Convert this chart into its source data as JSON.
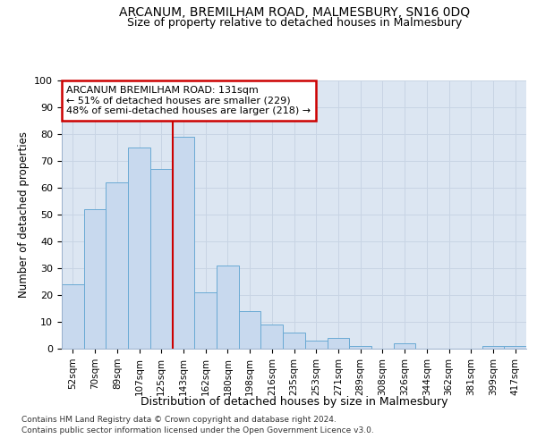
{
  "title1": "ARCANUM, BREMILHAM ROAD, MALMESBURY, SN16 0DQ",
  "title2": "Size of property relative to detached houses in Malmesbury",
  "xlabel": "Distribution of detached houses by size in Malmesbury",
  "ylabel": "Number of detached properties",
  "footnote1": "Contains HM Land Registry data © Crown copyright and database right 2024.",
  "footnote2": "Contains public sector information licensed under the Open Government Licence v3.0.",
  "bar_labels": [
    "52sqm",
    "70sqm",
    "89sqm",
    "107sqm",
    "125sqm",
    "143sqm",
    "162sqm",
    "180sqm",
    "198sqm",
    "216sqm",
    "235sqm",
    "253sqm",
    "271sqm",
    "289sqm",
    "308sqm",
    "326sqm",
    "344sqm",
    "362sqm",
    "381sqm",
    "399sqm",
    "417sqm"
  ],
  "bar_values": [
    24,
    52,
    62,
    75,
    67,
    79,
    21,
    31,
    14,
    9,
    6,
    3,
    4,
    1,
    0,
    2,
    0,
    0,
    0,
    1,
    1
  ],
  "bar_color": "#c8d9ee",
  "bar_edge_color": "#6aaad4",
  "property_line_x": 4.5,
  "annotation_text": "ARCANUM BREMILHAM ROAD: 131sqm\n← 51% of detached houses are smaller (229)\n48% of semi-detached houses are larger (218) →",
  "annotation_box_color": "#ffffff",
  "annotation_box_edge": "#cc0000",
  "vline_color": "#cc0000",
  "grid_color": "#c8d4e4",
  "background_color": "#dce6f2",
  "ylim": [
    0,
    100
  ],
  "yticks": [
    0,
    10,
    20,
    30,
    40,
    50,
    60,
    70,
    80,
    90,
    100
  ]
}
